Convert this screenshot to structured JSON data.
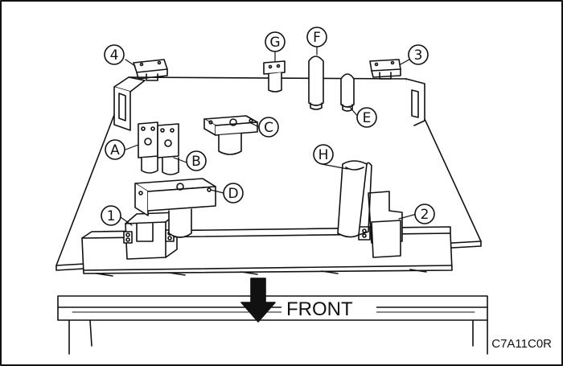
{
  "callouts": {
    "a": "A",
    "b": "B",
    "c": "C",
    "d": "D",
    "e": "E",
    "f": "F",
    "g": "G",
    "h": "H",
    "n1": "1",
    "n2": "2",
    "n3": "3",
    "n4": "4"
  },
  "direction_label": "FRONT",
  "figure_code": "C7A11C0R",
  "colors": {
    "line": "#111111",
    "fill": "#ffffff",
    "shade": "#e6e6e6"
  }
}
